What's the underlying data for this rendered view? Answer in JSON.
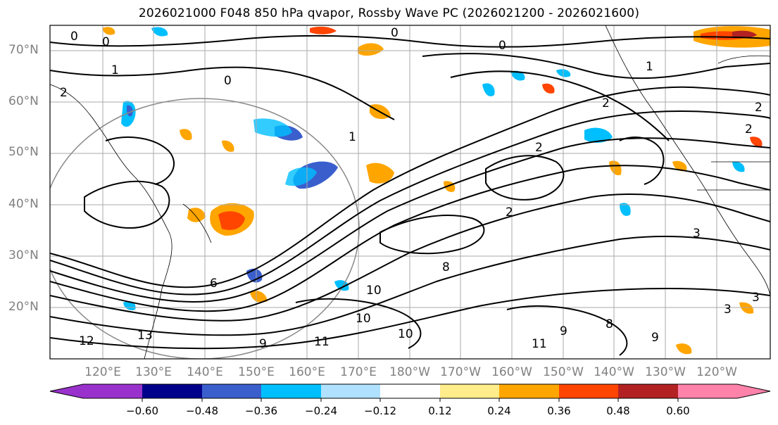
{
  "title": "2026021000 F048 850 hPa qvapor, Rossby Wave PC (2026021200 - 2026021600)",
  "latitude_labels": [
    "70°N",
    "60°N",
    "50°N",
    "40°N",
    "30°N",
    "20°N"
  ],
  "longitude_labels": [
    "120°E",
    "130°E",
    "140°E",
    "150°E",
    "160°E",
    "170°E",
    "180°W",
    "170°W",
    "160°W",
    "150°W",
    "140°W",
    "130°W",
    "120°W"
  ],
  "colorbar": {
    "ticks": [
      "−0.60",
      "−0.48",
      "−0.36",
      "−0.24",
      "−0.12",
      "0.12",
      "0.24",
      "0.36",
      "0.48",
      "0.60"
    ],
    "colors": [
      "#9932cc",
      "#00008b",
      "#3a5fcd",
      "#00bfff",
      "#b0e2ff",
      "#ffffff",
      "#ffec8b",
      "#ffa500",
      "#ff4500",
      "#b22222",
      "#ff82ab"
    ]
  },
  "contour_labels": [
    "0",
    "0",
    "0",
    "0",
    "1",
    "1",
    "2",
    "2",
    "2",
    "2",
    "2",
    "3",
    "3",
    "3",
    "6",
    "8",
    "9",
    "9",
    "10",
    "10",
    "11",
    "11",
    "12",
    "13",
    "0",
    "1",
    "2",
    "8",
    "10",
    "9"
  ],
  "colors": {
    "axis": "#000000",
    "grid": "#aaaaaa",
    "tick_text": "#808080"
  }
}
